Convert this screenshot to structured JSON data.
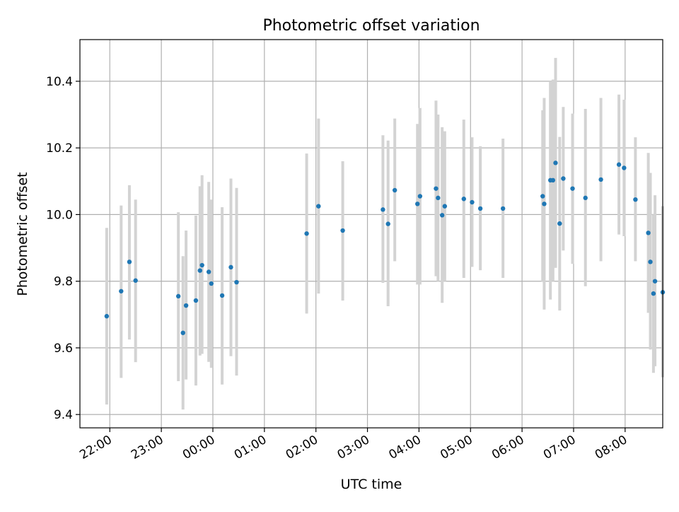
{
  "chart_data": {
    "type": "scatter",
    "title": "Photometric offset variation",
    "xlabel": "UTC time",
    "ylabel": "Photometric offset",
    "x_axis": "time (hours relative to 00:00 UTC)",
    "xlim": [
      -2.58,
      8.73
    ],
    "ylim": [
      9.36,
      10.525
    ],
    "x_ticks": [
      {
        "value": -2,
        "label": "22:00"
      },
      {
        "value": -1,
        "label": "23:00"
      },
      {
        "value": 0,
        "label": "00:00"
      },
      {
        "value": 1,
        "label": "01:00"
      },
      {
        "value": 2,
        "label": "02:00"
      },
      {
        "value": 3,
        "label": "03:00"
      },
      {
        "value": 4,
        "label": "04:00"
      },
      {
        "value": 5,
        "label": "05:00"
      },
      {
        "value": 6,
        "label": "06:00"
      },
      {
        "value": 7,
        "label": "07:00"
      },
      {
        "value": 8,
        "label": "08:00"
      }
    ],
    "y_ticks": [
      {
        "value": 9.4,
        "label": "9.4"
      },
      {
        "value": 9.6,
        "label": "9.6"
      },
      {
        "value": 9.8,
        "label": "9.8"
      },
      {
        "value": 10.0,
        "label": "10.0"
      },
      {
        "value": 10.2,
        "label": "10.2"
      },
      {
        "value": 10.4,
        "label": "10.4"
      }
    ],
    "grid": true,
    "colors": {
      "point": "#1f77b4",
      "errorbar": "#d3d3d3",
      "grid": "#b0b0b0"
    },
    "points": [
      {
        "x": -2.06,
        "y": 9.695,
        "lo": 9.43,
        "hi": 9.96
      },
      {
        "x": -1.78,
        "y": 9.77,
        "lo": 9.51,
        "hi": 10.027
      },
      {
        "x": -1.62,
        "y": 9.858,
        "lo": 9.625,
        "hi": 10.088
      },
      {
        "x": -1.5,
        "y": 9.802,
        "lo": 9.557,
        "hi": 10.045
      },
      {
        "x": -0.67,
        "y": 9.755,
        "lo": 9.5,
        "hi": 10.007
      },
      {
        "x": -0.58,
        "y": 9.645,
        "lo": 9.415,
        "hi": 9.875
      },
      {
        "x": -0.52,
        "y": 9.727,
        "lo": 9.505,
        "hi": 9.952
      },
      {
        "x": -0.33,
        "y": 9.742,
        "lo": 9.487,
        "hi": 9.997
      },
      {
        "x": -0.25,
        "y": 9.832,
        "lo": 9.577,
        "hi": 10.085
      },
      {
        "x": -0.21,
        "y": 9.848,
        "lo": 9.582,
        "hi": 10.118
      },
      {
        "x": -0.08,
        "y": 9.828,
        "lo": 9.558,
        "hi": 10.098
      },
      {
        "x": -0.03,
        "y": 9.793,
        "lo": 9.54,
        "hi": 10.045
      },
      {
        "x": 0.18,
        "y": 9.757,
        "lo": 9.49,
        "hi": 10.022
      },
      {
        "x": 0.35,
        "y": 9.842,
        "lo": 9.575,
        "hi": 10.108
      },
      {
        "x": 0.46,
        "y": 9.797,
        "lo": 9.517,
        "hi": 10.08
      },
      {
        "x": 1.82,
        "y": 9.943,
        "lo": 9.703,
        "hi": 10.183
      },
      {
        "x": 2.05,
        "y": 10.025,
        "lo": 9.763,
        "hi": 10.288
      },
      {
        "x": 2.52,
        "y": 9.952,
        "lo": 9.742,
        "hi": 10.16
      },
      {
        "x": 3.3,
        "y": 10.015,
        "lo": 9.795,
        "hi": 10.238
      },
      {
        "x": 3.4,
        "y": 9.972,
        "lo": 9.725,
        "hi": 10.222
      },
      {
        "x": 3.53,
        "y": 10.073,
        "lo": 9.86,
        "hi": 10.288
      },
      {
        "x": 3.97,
        "y": 10.032,
        "lo": 9.79,
        "hi": 10.272
      },
      {
        "x": 4.02,
        "y": 10.055,
        "lo": 9.79,
        "hi": 10.32
      },
      {
        "x": 4.33,
        "y": 10.078,
        "lo": 9.815,
        "hi": 10.342
      },
      {
        "x": 4.37,
        "y": 10.05,
        "lo": 9.8,
        "hi": 10.3
      },
      {
        "x": 4.45,
        "y": 9.998,
        "lo": 9.735,
        "hi": 10.262
      },
      {
        "x": 4.5,
        "y": 10.025,
        "lo": 9.8,
        "hi": 10.25
      },
      {
        "x": 4.87,
        "y": 10.047,
        "lo": 9.81,
        "hi": 10.285
      },
      {
        "x": 5.03,
        "y": 10.037,
        "lo": 9.843,
        "hi": 10.232
      },
      {
        "x": 5.19,
        "y": 10.018,
        "lo": 9.833,
        "hi": 10.205
      },
      {
        "x": 5.63,
        "y": 10.018,
        "lo": 9.81,
        "hi": 10.228
      },
      {
        "x": 6.4,
        "y": 10.055,
        "lo": 9.798,
        "hi": 10.313
      },
      {
        "x": 6.43,
        "y": 10.032,
        "lo": 9.715,
        "hi": 10.35
      },
      {
        "x": 6.55,
        "y": 10.103,
        "lo": 9.745,
        "hi": 10.4
      },
      {
        "x": 6.6,
        "y": 10.103,
        "lo": 9.8,
        "hi": 10.405
      },
      {
        "x": 6.65,
        "y": 10.155,
        "lo": 9.84,
        "hi": 10.47
      },
      {
        "x": 6.73,
        "y": 9.973,
        "lo": 9.712,
        "hi": 10.233
      },
      {
        "x": 6.8,
        "y": 10.108,
        "lo": 9.892,
        "hi": 10.323
      },
      {
        "x": 6.98,
        "y": 10.078,
        "lo": 9.852,
        "hi": 10.303
      },
      {
        "x": 7.23,
        "y": 10.05,
        "lo": 9.785,
        "hi": 10.317
      },
      {
        "x": 7.53,
        "y": 10.105,
        "lo": 9.86,
        "hi": 10.35
      },
      {
        "x": 7.88,
        "y": 10.15,
        "lo": 9.94,
        "hi": 10.36
      },
      {
        "x": 7.98,
        "y": 10.14,
        "lo": 9.935,
        "hi": 10.345
      },
      {
        "x": 8.2,
        "y": 10.045,
        "lo": 9.86,
        "hi": 10.232
      },
      {
        "x": 8.45,
        "y": 9.945,
        "lo": 9.705,
        "hi": 10.185
      },
      {
        "x": 8.49,
        "y": 9.858,
        "lo": 9.595,
        "hi": 10.125
      },
      {
        "x": 8.55,
        "y": 9.763,
        "lo": 9.525,
        "hi": 10.0
      },
      {
        "x": 8.58,
        "y": 9.8,
        "lo": 9.545,
        "hi": 10.058
      },
      {
        "x": 8.73,
        "y": 9.767,
        "lo": 9.512,
        "hi": 10.025
      }
    ]
  }
}
